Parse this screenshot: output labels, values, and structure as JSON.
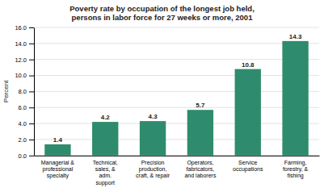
{
  "chart_data": {
    "type": "bar",
    "title": "Poverty rate by occupation of the longest job held,\npersons in labor force for 27 weeks or more, 2001",
    "categories": [
      "Managerial &\nprofessional\nspecialty",
      "Technical,\nsales, &\nadm.\nsupport",
      "Precision\nproduction,\ncraft, & repair",
      "Operators,\nfabricators,\nand laborers",
      "Service\noccupations",
      "Farming,\nforestry, &\nfishing"
    ],
    "values": [
      1.4,
      4.2,
      4.3,
      5.7,
      10.8,
      14.3
    ],
    "color": "#2e8b6e",
    "ylabel": "Percent",
    "ylim": [
      0,
      16.0
    ],
    "yticks": [
      {
        "value": 0.0,
        "label": "0.0"
      },
      {
        "value": 2.0,
        "label": "2.0"
      },
      {
        "value": 4.0,
        "label": "4.0"
      },
      {
        "value": 6.0,
        "label": "6.0"
      },
      {
        "value": 8.0,
        "label": "8.0"
      },
      {
        "value": 10.0,
        "label": "10.0"
      },
      {
        "value": 12.0,
        "label": "12.0"
      },
      {
        "value": 14.0,
        "label": "14.0"
      },
      {
        "value": 16.0,
        "label": "16.0"
      }
    ],
    "grid": true,
    "data_labels": true
  }
}
